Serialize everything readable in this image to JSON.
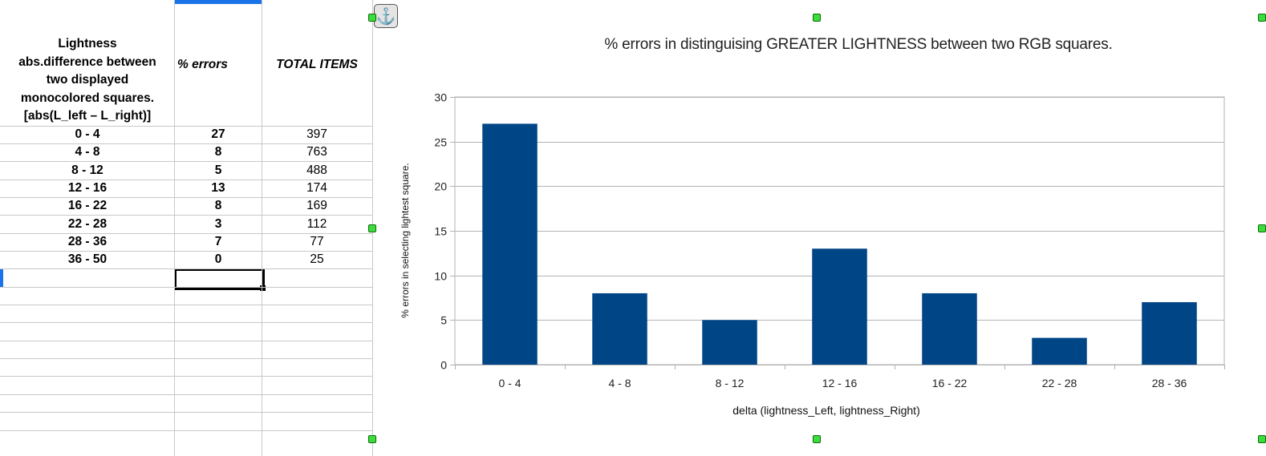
{
  "table": {
    "headers": {
      "lightness": [
        "Lightness",
        "abs.difference between",
        "two displayed",
        "monocolored squares.",
        "[abs(L_left – L_right)]"
      ],
      "errors": "% errors",
      "total": "TOTAL ITEMS"
    },
    "rows": [
      {
        "range": "0 - 4",
        "errors": "27",
        "total": "397"
      },
      {
        "range": "4 - 8",
        "errors": "8",
        "total": "763"
      },
      {
        "range": "8 - 12",
        "errors": "5",
        "total": "488"
      },
      {
        "range": "12 - 16",
        "errors": "13",
        "total": "174"
      },
      {
        "range": "16 - 22",
        "errors": "8",
        "total": "169"
      },
      {
        "range": "22 - 28",
        "errors": "3",
        "total": "112"
      },
      {
        "range": "28 - 36",
        "errors": "7",
        "total": "77"
      },
      {
        "range": "36 - 50",
        "errors": "0",
        "total": "25"
      }
    ]
  },
  "anchor_icon": "anchor-icon",
  "colors": {
    "bar": "#004586",
    "handle": "#3ddc3d",
    "selection": "#1a73e8"
  },
  "chart_data": {
    "type": "bar",
    "title": "% errors in distinguising GREATER LIGHTNESS between two RGB squares.",
    "xlabel": "delta (lightness_Left, lightness_Right)",
    "ylabel": "% errors in selecting lightest square.",
    "categories": [
      "0 - 4",
      "4 - 8",
      "8 - 12",
      "12 - 16",
      "16 - 22",
      "22 - 28",
      "28 - 36"
    ],
    "values": [
      27,
      8,
      5,
      13,
      8,
      3,
      7
    ],
    "ylim": [
      0,
      30
    ],
    "yticks": [
      "0",
      "5",
      "10",
      "15",
      "20",
      "25",
      "30"
    ],
    "grid": true,
    "legend": "none"
  }
}
